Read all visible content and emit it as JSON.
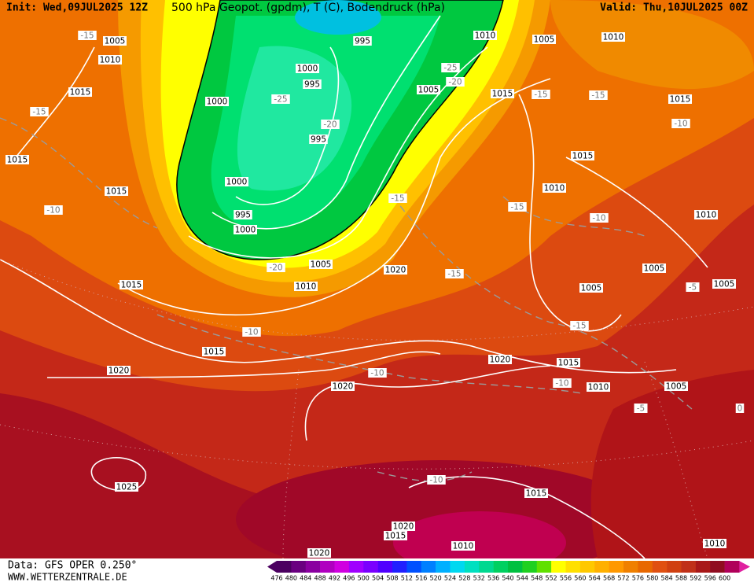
{
  "header": {
    "init": "Init: Wed,09JUL2025 12Z",
    "title": "500 hPa Geopot. (gpdm), T (C), Bodendruck (hPa)",
    "valid": "Valid: Thu,10JUL2025 00Z"
  },
  "footer": {
    "source": "Data: GFS OPER 0.250°",
    "site": "WWW.WETTERZENTRALE.DE"
  },
  "pressure_labels": [
    "1005",
    "1010",
    "1015",
    "1015",
    "1015",
    "1000",
    "1000",
    "995",
    "995",
    "1000",
    "995",
    "1000",
    "995",
    "1010",
    "1005",
    "1010",
    "1005",
    "1015",
    "1015",
    "1015",
    "1010",
    "1010",
    "1005",
    "1005",
    "1005",
    "1020",
    "1005",
    "1010",
    "1015",
    "1015",
    "1020",
    "1020",
    "1020",
    "1015",
    "1010",
    "1005",
    "1015",
    "1025",
    "1020",
    "1015",
    "1010",
    "1020",
    "1010"
  ],
  "temperature_labels": [
    "-15",
    "-15",
    "-10",
    "-25",
    "-20",
    "-25",
    "-20",
    "-15",
    "-15",
    "-10",
    "-15",
    "-15",
    "-10",
    "-15",
    "-20",
    "-10",
    "-15",
    "-10",
    "-10",
    "-5",
    "-5",
    "0",
    "-10"
  ],
  "colorbar": {
    "values": [
      476,
      480,
      484,
      488,
      492,
      496,
      500,
      504,
      508,
      512,
      516,
      520,
      524,
      528,
      532,
      536,
      540,
      544,
      548,
      552,
      556,
      560,
      564,
      568,
      572,
      576,
      580,
      584,
      588,
      592,
      596,
      600
    ],
    "colors": [
      "#4b0060",
      "#6a0080",
      "#8a00a0",
      "#b000c0",
      "#d000e0",
      "#a000ff",
      "#7a00ff",
      "#5000ff",
      "#2020ff",
      "#0050ff",
      "#0080ff",
      "#00b0ff",
      "#00d8f0",
      "#00e0c0",
      "#00d890",
      "#00d060",
      "#00c040",
      "#20d020",
      "#60e000",
      "#ffff00",
      "#ffe000",
      "#ffc800",
      "#ffb000",
      "#ff9800",
      "#f08000",
      "#e86800",
      "#e05010",
      "#d04010",
      "#c03018",
      "#a81818",
      "#900c20",
      "#b0005a"
    ]
  }
}
